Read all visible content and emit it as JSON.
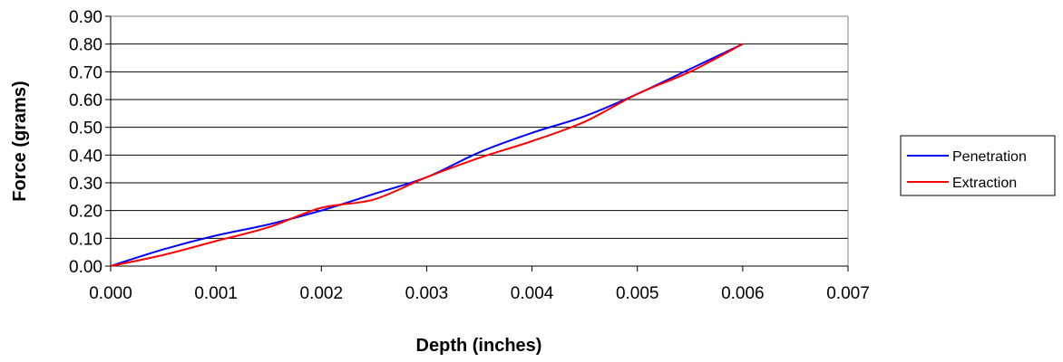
{
  "chart_data": {
    "type": "line",
    "title": "",
    "xlabel": "Depth (inches)",
    "ylabel": "Force (grams)",
    "xlim": [
      0,
      0.007
    ],
    "ylim": [
      0,
      0.9
    ],
    "x_ticks": [
      "0.000",
      "0.001",
      "0.002",
      "0.003",
      "0.004",
      "0.005",
      "0.006",
      "0.007"
    ],
    "y_ticks": [
      "0.00",
      "0.10",
      "0.20",
      "0.30",
      "0.40",
      "0.50",
      "0.60",
      "0.70",
      "0.80",
      "0.90"
    ],
    "grid": "horizontal",
    "legend_position": "right",
    "series": [
      {
        "name": "Penetration",
        "color": "#0000ff",
        "x": [
          0,
          0.0005,
          0.001,
          0.0015,
          0.002,
          0.0025,
          0.003,
          0.0035,
          0.004,
          0.0045,
          0.005,
          0.0055,
          0.006
        ],
        "y": [
          0,
          0.06,
          0.11,
          0.15,
          0.2,
          0.26,
          0.32,
          0.41,
          0.48,
          0.54,
          0.62,
          0.71,
          0.8
        ]
      },
      {
        "name": "Extraction",
        "color": "#ff0000",
        "x": [
          0,
          0.0005,
          0.001,
          0.0015,
          0.002,
          0.0025,
          0.003,
          0.0035,
          0.004,
          0.0045,
          0.005,
          0.0055,
          0.006
        ],
        "y": [
          0,
          0.04,
          0.09,
          0.14,
          0.21,
          0.24,
          0.32,
          0.39,
          0.45,
          0.52,
          0.62,
          0.7,
          0.8
        ]
      }
    ]
  }
}
